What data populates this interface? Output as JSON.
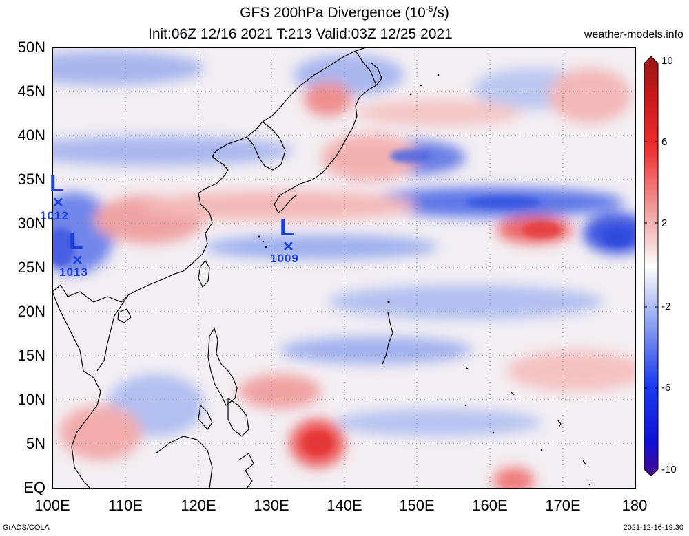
{
  "title": {
    "line1_prefix": "GFS 200hPa Divergence (10",
    "line1_exp": "-5",
    "line1_suffix": "/s)",
    "line2": "Init:06Z 12/16 2021 T:213 Valid:03Z 12/25 2021"
  },
  "site": "weather-models.info",
  "footer": {
    "left": "GrADS/COLA",
    "right": "2021-12-16-19:30"
  },
  "lat_labels": [
    "50N",
    "45N",
    "40N",
    "35N",
    "30N",
    "25N",
    "20N",
    "15N",
    "10N",
    "5N",
    "EQ"
  ],
  "lon_labels": [
    "100E",
    "110E",
    "120E",
    "130E",
    "140E",
    "150E",
    "160E",
    "170E",
    "180"
  ],
  "colorbar": {
    "labels": [
      "10",
      "6",
      "2",
      "-2",
      "-6",
      "-10"
    ],
    "colors": [
      "#4b0a8a",
      "#1616e6",
      "#3a5cf0",
      "#8fa2f0",
      "#d4dbf7",
      "#ffffff",
      "#f7d6d6",
      "#f09a9a",
      "#ee4b4b",
      "#e31a1a",
      "#a01818"
    ]
  },
  "lows": [
    {
      "symbol": "L",
      "value": "1012"
    },
    {
      "symbol": "L",
      "value": "1013"
    },
    {
      "symbol": "L",
      "value": "1009"
    }
  ]
}
